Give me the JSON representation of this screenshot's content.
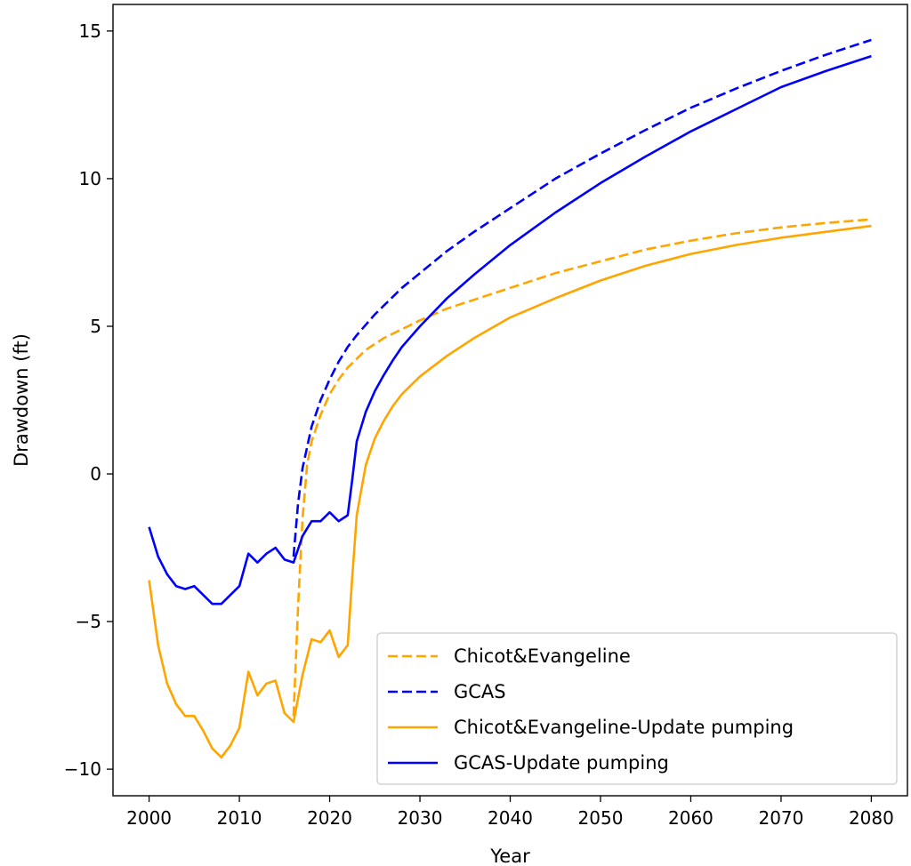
{
  "chart_data": {
    "type": "line",
    "title": "",
    "xlabel": "Year",
    "ylabel": "Drawdown (ft)",
    "xlim": [
      1996,
      2084
    ],
    "ylim": [
      -10.9,
      15.9
    ],
    "xticks": [
      2000,
      2010,
      2020,
      2030,
      2040,
      2050,
      2060,
      2070,
      2080
    ],
    "yticks": [
      -10,
      -5,
      0,
      5,
      10,
      15
    ],
    "ytick_labels": [
      "−10",
      "−5",
      "0",
      "5",
      "10",
      "15"
    ],
    "grid": false,
    "legend_placement": "lower-right",
    "series": [
      {
        "name": "Chicot&Evangeline",
        "color": "#FFA500",
        "style": "dashed",
        "x": [
          2016,
          2016.5,
          2017,
          2017.5,
          2018,
          2019,
          2020,
          2021,
          2022,
          2023,
          2024,
          2025,
          2026,
          2028,
          2030,
          2033,
          2036,
          2040,
          2045,
          2050,
          2055,
          2060,
          2065,
          2070,
          2075,
          2080
        ],
        "y": [
          -8.2,
          -4.5,
          -1.5,
          0.3,
          1.1,
          2.0,
          2.7,
          3.2,
          3.6,
          3.9,
          4.2,
          4.4,
          4.6,
          4.9,
          5.2,
          5.6,
          5.9,
          6.3,
          6.8,
          7.2,
          7.6,
          7.9,
          8.15,
          8.35,
          8.5,
          8.62
        ]
      },
      {
        "name": "GCAS",
        "color": "#0000FF",
        "style": "dashed",
        "x": [
          2016,
          2016.5,
          2017,
          2018,
          2019,
          2020,
          2021,
          2022,
          2023,
          2024,
          2025,
          2026,
          2028,
          2030,
          2033,
          2036,
          2040,
          2045,
          2050,
          2055,
          2060,
          2065,
          2070,
          2075,
          2080
        ],
        "y": [
          -2.8,
          -1.0,
          0.2,
          1.6,
          2.5,
          3.2,
          3.8,
          4.3,
          4.7,
          5.05,
          5.4,
          5.7,
          6.3,
          6.8,
          7.55,
          8.2,
          9.0,
          10.0,
          10.85,
          11.65,
          12.4,
          13.05,
          13.65,
          14.2,
          14.7
        ]
      },
      {
        "name": "Chicot&Evangeline-Update pumping",
        "color": "#FFA500",
        "style": "solid",
        "x": [
          2000,
          2001,
          2002,
          2003,
          2004,
          2005,
          2006,
          2007,
          2008,
          2009,
          2010,
          2011,
          2012,
          2013,
          2014,
          2015,
          2016,
          2017,
          2018,
          2019,
          2020,
          2021,
          2022,
          2022.5,
          2023,
          2024,
          2025,
          2026,
          2027,
          2028,
          2030,
          2033,
          2036,
          2040,
          2045,
          2050,
          2055,
          2060,
          2065,
          2070,
          2075,
          2080
        ],
        "y": [
          -3.6,
          -5.8,
          -7.1,
          -7.8,
          -8.2,
          -8.2,
          -8.7,
          -9.3,
          -9.6,
          -9.2,
          -8.6,
          -6.7,
          -7.5,
          -7.1,
          -7.0,
          -8.1,
          -8.4,
          -6.8,
          -5.6,
          -5.7,
          -5.3,
          -6.2,
          -5.8,
          -3.5,
          -1.4,
          0.3,
          1.2,
          1.8,
          2.3,
          2.7,
          3.3,
          4.0,
          4.6,
          5.3,
          5.95,
          6.55,
          7.05,
          7.45,
          7.75,
          8.0,
          8.2,
          8.4
        ]
      },
      {
        "name": "GCAS-Update pumping",
        "color": "#0000FF",
        "style": "solid",
        "x": [
          2000,
          2001,
          2002,
          2003,
          2004,
          2005,
          2006,
          2007,
          2008,
          2009,
          2010,
          2011,
          2012,
          2013,
          2014,
          2015,
          2016,
          2017,
          2018,
          2019,
          2020,
          2021,
          2022,
          2022.5,
          2023,
          2024,
          2025,
          2026,
          2027,
          2028,
          2030,
          2033,
          2036,
          2040,
          2045,
          2050,
          2055,
          2060,
          2065,
          2070,
          2075,
          2080
        ],
        "y": [
          -1.8,
          -2.8,
          -3.4,
          -3.8,
          -3.9,
          -3.8,
          -4.1,
          -4.4,
          -4.4,
          -4.1,
          -3.8,
          -2.7,
          -3.0,
          -2.7,
          -2.5,
          -2.9,
          -3.0,
          -2.1,
          -1.6,
          -1.6,
          -1.3,
          -1.6,
          -1.4,
          -0.2,
          1.1,
          2.1,
          2.8,
          3.35,
          3.85,
          4.3,
          5.0,
          5.95,
          6.75,
          7.75,
          8.85,
          9.85,
          10.75,
          11.6,
          12.35,
          13.1,
          13.65,
          14.15
        ]
      }
    ]
  }
}
